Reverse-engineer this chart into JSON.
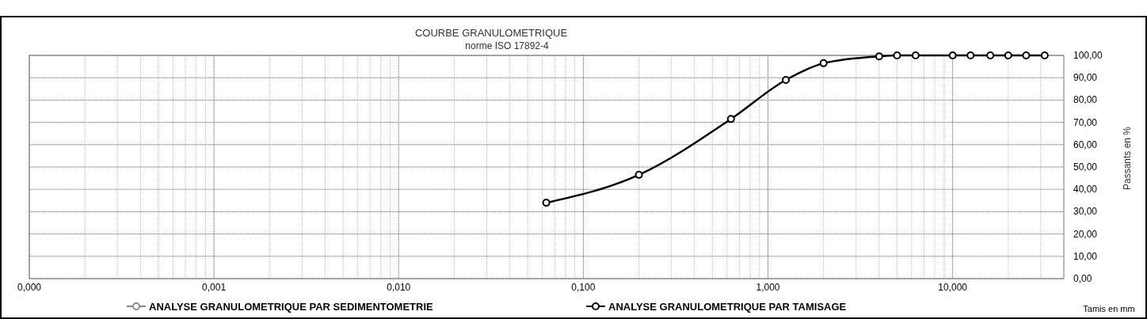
{
  "chart_data": {
    "type": "line",
    "title": "COURBE GRANULOMETRIQUE",
    "subtitle": "norme ISO 17892-4",
    "xlabel": "Tamis en mm",
    "ylabel": "Passants en %",
    "log": "x",
    "grid": true,
    "legend": "bottom",
    "marker": "circle",
    "line_style": "solid",
    "xlim": [
      0.0001,
      40
    ],
    "ylim": [
      0,
      100
    ],
    "xticks": [
      {
        "value": 0.0001,
        "label": "0,000"
      },
      {
        "value": 0.001,
        "label": "0,001"
      },
      {
        "value": 0.01,
        "label": "0,010"
      },
      {
        "value": 0.1,
        "label": "0,100"
      },
      {
        "value": 1,
        "label": "1,000"
      },
      {
        "value": 10,
        "label": "10,000"
      }
    ],
    "yticks": [
      {
        "value": 0,
        "label": "0,00"
      },
      {
        "value": 10,
        "label": "10,00"
      },
      {
        "value": 20,
        "label": "20,00"
      },
      {
        "value": 30,
        "label": "30,00"
      },
      {
        "value": 40,
        "label": "40,00"
      },
      {
        "value": 50,
        "label": "50,00"
      },
      {
        "value": 60,
        "label": "60,00"
      },
      {
        "value": 70,
        "label": "70,00"
      },
      {
        "value": 80,
        "label": "80,00"
      },
      {
        "value": 90,
        "label": "90,00"
      },
      {
        "value": 100,
        "label": "100,00"
      }
    ],
    "series": [
      {
        "name": "ANALYSE GRANULOMETRIQUE PAR SEDIMENTOMETRIE",
        "color": "#888888"
      },
      {
        "name": "ANALYSE GRANULOMETRIQUE PAR TAMISAGE",
        "color": "#000000",
        "x": [
          0.063,
          0.2,
          0.63,
          1.25,
          2,
          4,
          5,
          6.3,
          10,
          12.5,
          16,
          20,
          25,
          31.5
        ],
        "values": [
          34,
          46.5,
          71.5,
          89,
          96.5,
          99.6,
          100,
          100,
          100,
          100,
          100,
          100,
          100,
          100
        ]
      }
    ]
  }
}
